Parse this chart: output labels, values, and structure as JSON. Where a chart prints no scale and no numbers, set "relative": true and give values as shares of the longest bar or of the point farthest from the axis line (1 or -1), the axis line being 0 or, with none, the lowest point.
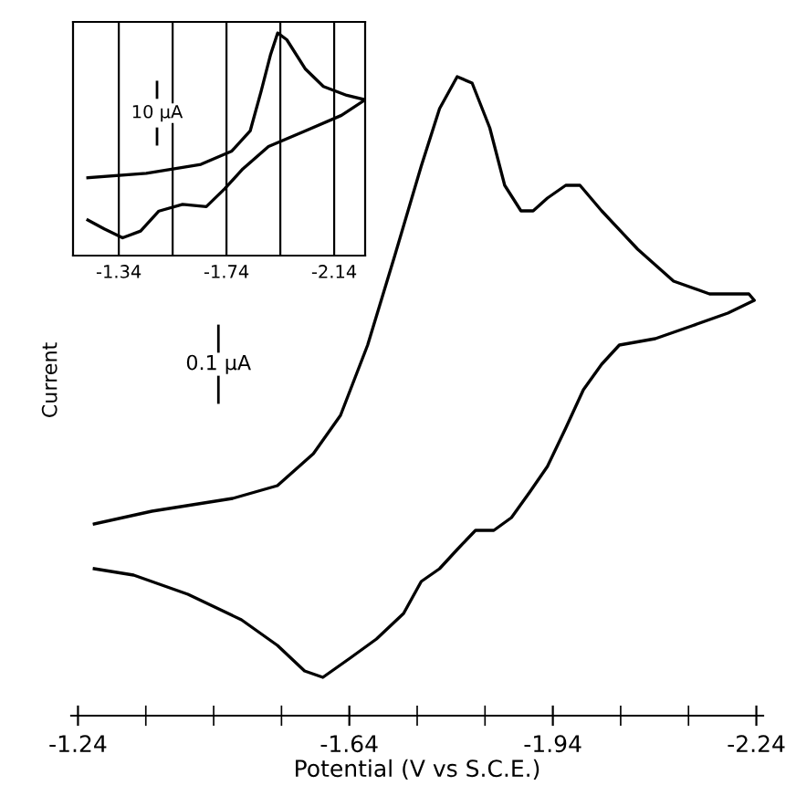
{
  "chart_data": [
    {
      "type": "line",
      "relative": true,
      "xlabel": "Potential (V vs S.C.E.)",
      "ylabel": "Current",
      "annotations": [
        "0.1 μA"
      ],
      "xlim": [
        -1.23,
        -2.25
      ],
      "xticks": [
        -1.24,
        {
          "value": -1.34,
          "label": null
        },
        {
          "value": -1.44,
          "label": null
        },
        {
          "value": -1.54,
          "label": null
        },
        -1.64,
        {
          "value": -1.74,
          "label": null
        },
        {
          "value": -1.84,
          "label": null
        },
        -1.94,
        {
          "value": -2.04,
          "label": null
        },
        {
          "value": -2.14,
          "label": null
        },
        -2.24
      ],
      "tick_labels": "x",
      "grid": false,
      "legend": false,
      "series": [
        {
          "color": "#000000",
          "x": [
            -1.264,
            -1.349,
            -1.468,
            -1.534,
            -1.587,
            -1.627,
            -1.667,
            -1.707,
            -1.746,
            -1.773,
            -1.799,
            -1.821,
            -1.847,
            -1.869,
            -1.893,
            -1.911,
            -1.932,
            -1.959,
            -1.98,
            -2.012,
            -2.065,
            -2.118,
            -2.171,
            -2.229,
            -2.237,
            -2.198,
            -2.145,
            -2.091,
            -2.038,
            -2.012,
            -1.985,
            -1.959,
            -1.932,
            -1.906,
            -1.879,
            -1.853,
            -1.826,
            -1.799,
            -1.773,
            -1.746,
            -1.72,
            -1.68,
            -1.641,
            -1.601,
            -1.574,
            -1.534,
            -1.481,
            -1.402,
            -1.322,
            -1.264
          ],
          "values": [
            0.3,
            0.32,
            0.34,
            0.36,
            0.41,
            0.47,
            0.58,
            0.72,
            0.86,
            0.95,
            1.0,
            0.99,
            0.92,
            0.83,
            0.79,
            0.79,
            0.81,
            0.83,
            0.83,
            0.79,
            0.73,
            0.68,
            0.66,
            0.66,
            0.65,
            0.63,
            0.61,
            0.59,
            0.58,
            0.55,
            0.51,
            0.45,
            0.39,
            0.35,
            0.31,
            0.29,
            0.29,
            0.26,
            0.23,
            0.21,
            0.16,
            0.12,
            0.09,
            0.06,
            0.07,
            0.11,
            0.15,
            0.19,
            0.22,
            0.23
          ]
        }
      ]
    },
    {
      "type": "line",
      "relative": true,
      "annotations": [
        "10 μA"
      ],
      "xlim": [
        -1.17,
        -2.255
      ],
      "xticks": [
        -1.34,
        {
          "value": -1.54,
          "label": null
        },
        -1.74,
        {
          "value": -1.94,
          "label": null
        },
        -2.14
      ],
      "tick_labels": "x",
      "grid": "x",
      "legend": false,
      "series": [
        {
          "color": "#000000",
          "x": [
            -1.225,
            -1.442,
            -1.645,
            -1.76,
            -1.828,
            -1.869,
            -1.903,
            -1.93,
            -1.964,
            -2.032,
            -2.1,
            -2.187,
            -2.255,
            -2.167,
            -2.032,
            -1.896,
            -1.801,
            -1.733,
            -1.665,
            -1.577,
            -1.489,
            -1.421,
            -1.354,
            -1.286,
            -1.225
          ],
          "values": [
            0.35,
            0.37,
            0.41,
            0.47,
            0.56,
            0.74,
            0.9,
            1.0,
            0.97,
            0.84,
            0.76,
            0.72,
            0.7,
            0.63,
            0.56,
            0.49,
            0.39,
            0.3,
            0.22,
            0.23,
            0.2,
            0.11,
            0.08,
            0.12,
            0.16
          ]
        }
      ]
    }
  ]
}
